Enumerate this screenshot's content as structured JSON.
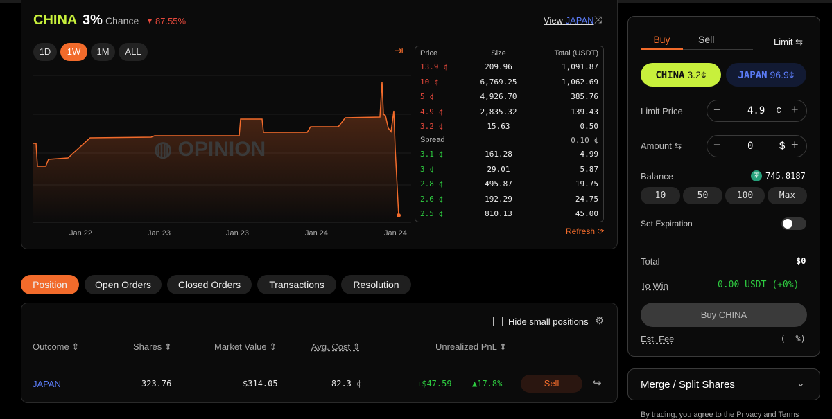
{
  "market": {
    "name": "CHINA",
    "percent": "3%",
    "chance": "Chance",
    "change": "87.55%",
    "view_prefix": "View",
    "view_name": "JAPAN"
  },
  "ranges": [
    "1D",
    "1W",
    "1M",
    "ALL"
  ],
  "chart": {
    "watermark": "OPINION",
    "x_labels": [
      "Jan 22",
      "Jan 23",
      "Jan 23",
      "Jan 24",
      "Jan 24"
    ]
  },
  "order_book": {
    "headers": [
      "Price",
      "Size",
      "Total (USDT)"
    ],
    "asks": [
      [
        "13.9 ¢",
        "209.96",
        "1,091.87"
      ],
      [
        "10 ¢",
        "6,769.25",
        "1,062.69"
      ],
      [
        "5 ¢",
        "4,926.70",
        "385.76"
      ],
      [
        "4.9 ¢",
        "2,835.32",
        "139.43"
      ],
      [
        "3.2 ¢",
        "15.63",
        "0.50"
      ]
    ],
    "spread_label": "Spread",
    "spread": "0.10 ¢",
    "bids": [
      [
        "3.1 ¢",
        "161.28",
        "4.99"
      ],
      [
        "3 ¢",
        "29.01",
        "5.87"
      ],
      [
        "2.8 ¢",
        "495.87",
        "19.75"
      ],
      [
        "2.6 ¢",
        "192.29",
        "24.75"
      ],
      [
        "2.5 ¢",
        "810.13",
        "45.00"
      ]
    ],
    "refresh": "Refresh"
  },
  "tabs": [
    "Position",
    "Open Orders",
    "Closed Orders",
    "Transactions",
    "Resolution"
  ],
  "positions": {
    "hide_small": "Hide small positions",
    "headers": [
      "Outcome",
      "Shares",
      "Market Value",
      "Avg. Cost",
      "Unrealized PnL"
    ],
    "rows": [
      [
        "JAPAN",
        "323.76",
        "$314.05",
        "82.3 ¢",
        "+$47.59",
        "17.8%",
        "Sell"
      ]
    ]
  },
  "trade": {
    "buy": "Buy",
    "sell": "Sell",
    "limit": "Limit",
    "outcome_yes": "CHINA",
    "outcome_yes_price": "3.2¢",
    "outcome_no": "JAPAN",
    "outcome_no_price": "96.9¢",
    "limit_price_label": "Limit Price",
    "limit_price": "4.9",
    "limit_unit": "¢",
    "amount_label": "Amount",
    "amount": "0",
    "amount_unit": "$",
    "balance_label": "Balance",
    "balance": "745.8187",
    "quick": [
      "10",
      "50",
      "100",
      "Max"
    ],
    "expiration": "Set Expiration",
    "total_label": "Total",
    "total": "$0",
    "to_win_label": "To Win",
    "to_win": "0.00 USDT (+0%)",
    "submit": "Buy CHINA",
    "fee_label": "Est. Fee",
    "fee": "-- (--%)",
    "merge": "Merge / Split Shares",
    "footer": "By trading, you agree to the Privacy and Terms"
  }
}
